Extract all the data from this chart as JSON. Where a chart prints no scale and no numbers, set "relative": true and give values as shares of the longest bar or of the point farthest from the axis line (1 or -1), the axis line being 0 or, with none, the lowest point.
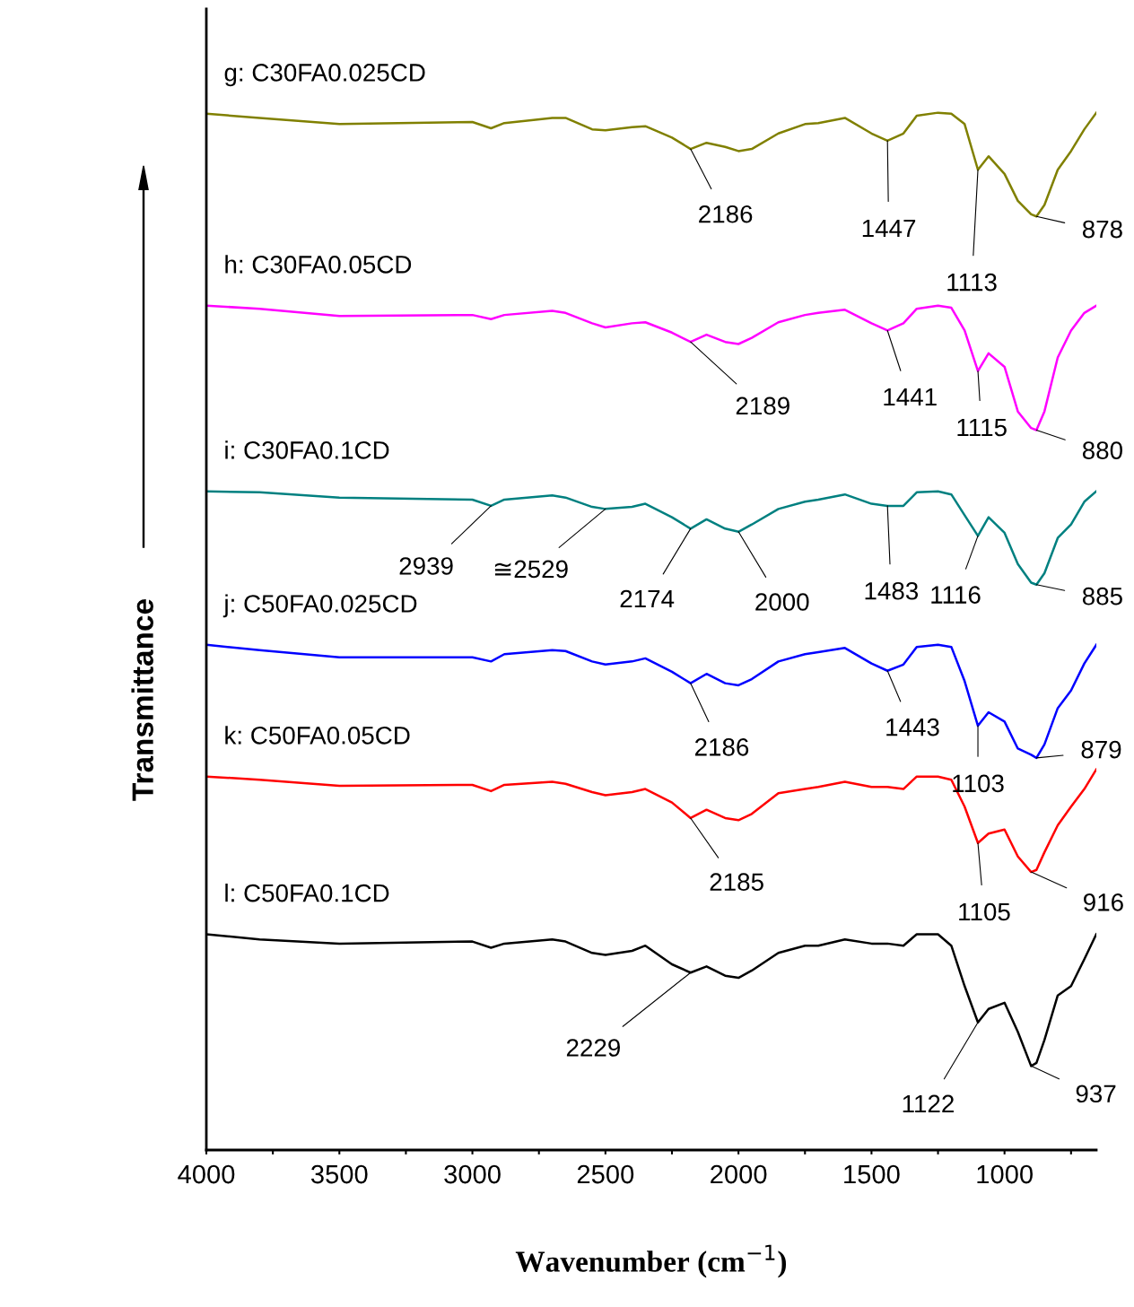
{
  "chart_data": {
    "type": "line",
    "relative": true,
    "xlabel": "Wavenumber (cm$^{−1}$)",
    "ylabel": "Transmittance",
    "xlim": [
      4000,
      655
    ],
    "xticks": [
      4000,
      {
        "value": 3750,
        "label": null
      },
      3500,
      {
        "value": 3250,
        "label": null
      },
      3000,
      {
        "value": 2750,
        "label": null
      },
      2500,
      {
        "value": 2250,
        "label": null
      },
      2000,
      {
        "value": 1750,
        "label": null
      },
      1500,
      {
        "value": 1250,
        "label": null
      },
      1000,
      {
        "value": 750,
        "label": null
      }
    ],
    "x": [
      4000,
      3800,
      3500,
      3000,
      2930,
      2880,
      2700,
      2650,
      2550,
      2500,
      2400,
      2350,
      2250,
      2180,
      2120,
      2050,
      2000,
      1950,
      1850,
      1750,
      1700,
      1600,
      1500,
      1440,
      1380,
      1330,
      1250,
      1200,
      1150,
      1100,
      1060,
      1000,
      950,
      900,
      880,
      850,
      800,
      750,
      700,
      655
    ],
    "grid": false,
    "legend": false,
    "marker": "none",
    "line_style": "solid",
    "series": [
      {
        "name": "g: C30FA0.025CD",
        "color": "#808000",
        "values": [
          0.999,
          0.995,
          0.989,
          0.991,
          0.985,
          0.99,
          0.995,
          0.995,
          0.984,
          0.983,
          0.986,
          0.987,
          0.976,
          0.965,
          0.971,
          0.967,
          0.963,
          0.965,
          0.98,
          0.989,
          0.99,
          0.995,
          0.98,
          0.973,
          0.98,
          0.997,
          1.0,
          0.999,
          0.989,
          0.945,
          0.958,
          0.941,
          0.915,
          0.902,
          0.9,
          0.911,
          0.945,
          0.963,
          0.984,
          1.0
        ]
      },
      {
        "name": "h: C30FA0.05CD",
        "color": "#ff00ff",
        "values": [
          0.814,
          0.811,
          0.804,
          0.805,
          0.801,
          0.805,
          0.809,
          0.807,
          0.797,
          0.793,
          0.797,
          0.798,
          0.788,
          0.779,
          0.786,
          0.779,
          0.777,
          0.783,
          0.798,
          0.805,
          0.807,
          0.81,
          0.797,
          0.79,
          0.797,
          0.811,
          0.814,
          0.812,
          0.79,
          0.751,
          0.768,
          0.755,
          0.712,
          0.696,
          0.694,
          0.712,
          0.764,
          0.79,
          0.807,
          0.814
        ]
      },
      {
        "name": "i: C30FA0.1CD",
        "color": "#008080",
        "values": [
          0.635,
          0.634,
          0.629,
          0.627,
          0.621,
          0.627,
          0.631,
          0.629,
          0.62,
          0.618,
          0.62,
          0.623,
          0.61,
          0.599,
          0.608,
          0.599,
          0.596,
          0.603,
          0.618,
          0.625,
          0.627,
          0.632,
          0.623,
          0.621,
          0.621,
          0.634,
          0.635,
          0.632,
          0.612,
          0.592,
          0.61,
          0.595,
          0.565,
          0.547,
          0.545,
          0.556,
          0.59,
          0.603,
          0.625,
          0.635
        ]
      },
      {
        "name": "j: C50FA0.025CD",
        "color": "#0000ff",
        "values": [
          0.487,
          0.482,
          0.475,
          0.475,
          0.471,
          0.478,
          0.482,
          0.481,
          0.471,
          0.468,
          0.471,
          0.474,
          0.461,
          0.45,
          0.459,
          0.45,
          0.448,
          0.454,
          0.471,
          0.478,
          0.48,
          0.484,
          0.469,
          0.462,
          0.468,
          0.485,
          0.487,
          0.485,
          0.452,
          0.409,
          0.422,
          0.413,
          0.387,
          0.381,
          0.378,
          0.391,
          0.426,
          0.443,
          0.469,
          0.487
        ]
      },
      {
        "name": "k: C50FA0.05CD",
        "color": "#ff0000",
        "values": [
          0.36,
          0.357,
          0.351,
          0.352,
          0.346,
          0.352,
          0.355,
          0.353,
          0.345,
          0.342,
          0.345,
          0.348,
          0.335,
          0.32,
          0.328,
          0.32,
          0.318,
          0.324,
          0.344,
          0.348,
          0.35,
          0.355,
          0.35,
          0.35,
          0.348,
          0.36,
          0.36,
          0.357,
          0.331,
          0.296,
          0.305,
          0.309,
          0.283,
          0.268,
          0.27,
          0.287,
          0.313,
          0.331,
          0.348,
          0.367
        ]
      },
      {
        "name": "l: C50FA0.1CD",
        "color": "#000000",
        "values": [
          0.208,
          0.203,
          0.199,
          0.201,
          0.195,
          0.199,
          0.203,
          0.201,
          0.19,
          0.188,
          0.192,
          0.197,
          0.179,
          0.171,
          0.177,
          0.168,
          0.166,
          0.173,
          0.19,
          0.197,
          0.197,
          0.203,
          0.199,
          0.199,
          0.197,
          0.208,
          0.208,
          0.197,
          0.158,
          0.123,
          0.136,
          0.142,
          0.114,
          0.081,
          0.084,
          0.106,
          0.149,
          0.158,
          0.184,
          0.208
        ]
      }
    ],
    "annotations": [
      {
        "text": "2186",
        "x": 2180,
        "y": 0.965
      },
      {
        "text": "1447",
        "x": 1440,
        "y": 0.973
      },
      {
        "text": "1113",
        "x": 1100,
        "y": 0.945
      },
      {
        "text": "878",
        "x": 880,
        "y": 0.9
      },
      {
        "text": "2189",
        "x": 2180,
        "y": 0.779
      },
      {
        "text": "1441",
        "x": 1440,
        "y": 0.79
      },
      {
        "text": "1115",
        "x": 1100,
        "y": 0.751
      },
      {
        "text": "880",
        "x": 880,
        "y": 0.694
      },
      {
        "text": "2939",
        "x": 2930,
        "y": 0.621
      },
      {
        "text": "≅2529",
        "x": 2500,
        "y": 0.618
      },
      {
        "text": "2174",
        "x": 2180,
        "y": 0.599
      },
      {
        "text": "2000",
        "x": 2000,
        "y": 0.596
      },
      {
        "text": "1483",
        "x": 1440,
        "y": 0.621
      },
      {
        "text": "1116",
        "x": 1100,
        "y": 0.592
      },
      {
        "text": "885",
        "x": 880,
        "y": 0.545
      },
      {
        "text": "2186",
        "x": 2180,
        "y": 0.45
      },
      {
        "text": "1443",
        "x": 1440,
        "y": 0.462
      },
      {
        "text": "1103",
        "x": 1100,
        "y": 0.409
      },
      {
        "text": "879",
        "x": 880,
        "y": 0.378
      },
      {
        "text": "2185",
        "x": 2180,
        "y": 0.32
      },
      {
        "text": "1105",
        "x": 1100,
        "y": 0.296
      },
      {
        "text": "916",
        "x": 900,
        "y": 0.268
      },
      {
        "text": "2229",
        "x": 2180,
        "y": 0.171
      },
      {
        "text": "1122",
        "x": 1100,
        "y": 0.123
      },
      {
        "text": "937",
        "x": 900,
        "y": 0.081
      }
    ]
  }
}
